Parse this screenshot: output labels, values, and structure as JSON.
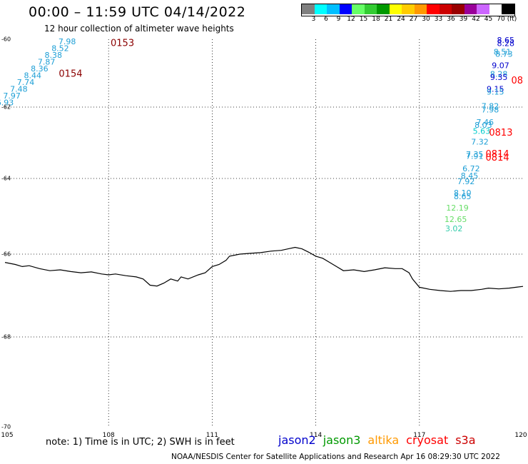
{
  "title": "00:00 – 11:59 UTC 04/14/2022",
  "subtitle": "12 hour collection of altimeter wave heights",
  "legend": {
    "unit": "(ft)",
    "colors": [
      "#808080",
      "#00ffff",
      "#00bfff",
      "#0000ff",
      "#66ff66",
      "#33cc33",
      "#009900",
      "#ffff00",
      "#ffcc00",
      "#ff9900",
      "#ff0000",
      "#cc0000",
      "#990000",
      "#990099",
      "#cc66ff",
      "#ffffff",
      "#000000"
    ],
    "labels": [
      "3",
      "6",
      "9",
      "12",
      "15",
      "18",
      "21",
      "24",
      "27",
      "30",
      "33",
      "36",
      "39",
      "42",
      "45",
      "70"
    ]
  },
  "axes": {
    "lon_ticks": [
      "105",
      "108",
      "111",
      "114",
      "117",
      "120"
    ],
    "lat_ticks": [
      "-60",
      "-62",
      "-64",
      "-66",
      "-68",
      "-70"
    ]
  },
  "note": "note: 1) Time is in UTC; 2) SWH is in feet",
  "satellites": [
    {
      "name": "jason2",
      "color": "#0000cc"
    },
    {
      "name": "jason3",
      "color": "#009900"
    },
    {
      "name": "altika",
      "color": "#ff9900"
    },
    {
      "name": "cryosat",
      "color": "#ff0000"
    },
    {
      "name": "s3a",
      "color": "#cc0000"
    }
  ],
  "credit": "NOAA/NESDIS Center for Satellite Applications and Research   Apr 16 08:29:30 UTC 2022",
  "time_labels": [
    {
      "text": "0153",
      "lon": 108.4,
      "lat": -60.2,
      "color": "#8b0000"
    },
    {
      "text": "0154",
      "lon": 106.9,
      "lat": -61.1,
      "color": "#8b0000"
    },
    {
      "text": "08",
      "lon": 120.0,
      "lat": -61.3,
      "color": "#ff0000"
    },
    {
      "text": "0813",
      "lon": 119.7,
      "lat": -62.8,
      "color": "#ff0000"
    },
    {
      "text": "0814",
      "lon": 119.6,
      "lat": -63.4,
      "color": "#ff0000"
    },
    {
      "text": "0814",
      "lon": 119.6,
      "lat": -63.5,
      "color": "#ff0000"
    }
  ],
  "wave_points": [
    {
      "value": "7.98",
      "lon": 106.8,
      "lat": -60.15,
      "color": "#1e9fd6"
    },
    {
      "value": "8.52",
      "lon": 106.6,
      "lat": -60.35,
      "color": "#1e9fd6"
    },
    {
      "value": "8.38",
      "lon": 106.4,
      "lat": -60.55,
      "color": "#1e9fd6"
    },
    {
      "value": "7.87",
      "lon": 106.2,
      "lat": -60.75,
      "color": "#1e9fd6"
    },
    {
      "value": "8.36",
      "lon": 106.0,
      "lat": -60.95,
      "color": "#1e9fd6"
    },
    {
      "value": "8.44",
      "lon": 105.8,
      "lat": -61.15,
      "color": "#1e9fd6"
    },
    {
      "value": "7.74",
      "lon": 105.6,
      "lat": -61.35,
      "color": "#1e9fd6"
    },
    {
      "value": "7.48",
      "lon": 105.4,
      "lat": -61.55,
      "color": "#1e9fd6"
    },
    {
      "value": "7.97",
      "lon": 105.2,
      "lat": -61.75,
      "color": "#1e9fd6"
    },
    {
      "value": "6.93",
      "lon": 105.0,
      "lat": -61.95,
      "color": "#1e9fd6"
    },
    {
      "value": "8.65",
      "lon": 119.5,
      "lat": -60.1,
      "color": "#0000cc"
    },
    {
      "value": "8.28",
      "lon": 119.5,
      "lat": -60.2,
      "color": "#0000cc"
    },
    {
      "value": "8.51",
      "lon": 119.4,
      "lat": -60.45,
      "color": "#1e9fd6"
    },
    {
      "value": "8.73",
      "lon": 119.45,
      "lat": -60.52,
      "color": "#1e9fd6"
    },
    {
      "value": "9.07",
      "lon": 119.35,
      "lat": -60.85,
      "color": "#0000cc"
    },
    {
      "value": "8.28",
      "lon": 119.3,
      "lat": -61.1,
      "color": "#1e9fd6"
    },
    {
      "value": "9.35",
      "lon": 119.3,
      "lat": -61.2,
      "color": "#0000cc"
    },
    {
      "value": "9.15",
      "lon": 119.2,
      "lat": -61.55,
      "color": "#0000cc"
    },
    {
      "value": "9.15",
      "lon": 119.2,
      "lat": -61.63,
      "color": "#1e9fd6"
    },
    {
      "value": "7.82",
      "lon": 119.05,
      "lat": -62.05,
      "color": "#1e9fd6"
    },
    {
      "value": "7.98",
      "lon": 119.05,
      "lat": -62.15,
      "color": "#1e9fd6"
    },
    {
      "value": "7.46",
      "lon": 118.9,
      "lat": -62.5,
      "color": "#1e9fd6"
    },
    {
      "value": "8.03",
      "lon": 118.85,
      "lat": -62.58,
      "color": "#1e9fd6"
    },
    {
      "value": "5.63",
      "lon": 118.8,
      "lat": -62.75,
      "color": "#00cccc"
    },
    {
      "value": "7.32",
      "lon": 118.75,
      "lat": -63.05,
      "color": "#1e9fd6"
    },
    {
      "value": "7.35",
      "lon": 118.6,
      "lat": -63.4,
      "color": "#1e9fd6"
    },
    {
      "value": "7.91",
      "lon": 118.6,
      "lat": -63.45,
      "color": "#1e9fd6"
    },
    {
      "value": "6.72",
      "lon": 118.5,
      "lat": -63.8,
      "color": "#1e9fd6"
    },
    {
      "value": "8.45",
      "lon": 118.45,
      "lat": -64.0,
      "color": "#1e9fd6"
    },
    {
      "value": "7.92",
      "lon": 118.35,
      "lat": -64.15,
      "color": "#1e9fd6"
    },
    {
      "value": "8.10",
      "lon": 118.25,
      "lat": -64.45,
      "color": "#1e9fd6"
    },
    {
      "value": "8.65",
      "lon": 118.25,
      "lat": -64.55,
      "color": "#1e9fd6"
    },
    {
      "value": "12.19",
      "lon": 118.1,
      "lat": -64.85,
      "color": "#66dd66"
    },
    {
      "value": "12.65",
      "lon": 118.05,
      "lat": -65.15,
      "color": "#66dd66"
    },
    {
      "value": "3.02",
      "lon": 118.0,
      "lat": -65.4,
      "color": "#33ccaa"
    }
  ],
  "coastline": [
    [
      105.0,
      -66.2
    ],
    [
      105.3,
      -66.25
    ],
    [
      105.5,
      -66.3
    ],
    [
      105.7,
      -66.28
    ],
    [
      106.0,
      -66.35
    ],
    [
      106.3,
      -66.4
    ],
    [
      106.6,
      -66.38
    ],
    [
      106.9,
      -66.42
    ],
    [
      107.2,
      -66.45
    ],
    [
      107.5,
      -66.43
    ],
    [
      107.8,
      -66.48
    ],
    [
      108.0,
      -66.5
    ],
    [
      108.2,
      -66.48
    ],
    [
      108.5,
      -66.52
    ],
    [
      108.8,
      -66.55
    ],
    [
      109.0,
      -66.6
    ],
    [
      109.2,
      -66.75
    ],
    [
      109.4,
      -66.77
    ],
    [
      109.6,
      -66.7
    ],
    [
      109.8,
      -66.6
    ],
    [
      110.0,
      -66.65
    ],
    [
      110.1,
      -66.55
    ],
    [
      110.3,
      -66.6
    ],
    [
      110.6,
      -66.5
    ],
    [
      110.8,
      -66.45
    ],
    [
      111.0,
      -66.3
    ],
    [
      111.2,
      -66.25
    ],
    [
      111.4,
      -66.15
    ],
    [
      111.5,
      -66.05
    ],
    [
      111.8,
      -66.0
    ],
    [
      112.1,
      -65.98
    ],
    [
      112.4,
      -65.96
    ],
    [
      112.7,
      -65.92
    ],
    [
      113.0,
      -65.9
    ],
    [
      113.2,
      -65.86
    ],
    [
      113.4,
      -65.82
    ],
    [
      113.6,
      -65.86
    ],
    [
      113.8,
      -65.95
    ],
    [
      114.0,
      -66.05
    ],
    [
      114.2,
      -66.1
    ],
    [
      114.4,
      -66.2
    ],
    [
      114.6,
      -66.3
    ],
    [
      114.8,
      -66.4
    ],
    [
      115.1,
      -66.38
    ],
    [
      115.4,
      -66.42
    ],
    [
      115.7,
      -66.38
    ],
    [
      116.0,
      -66.33
    ],
    [
      116.3,
      -66.35
    ],
    [
      116.5,
      -66.35
    ],
    [
      116.7,
      -66.45
    ],
    [
      116.8,
      -66.6
    ],
    [
      117.0,
      -66.8
    ],
    [
      117.3,
      -66.85
    ],
    [
      117.6,
      -66.88
    ],
    [
      117.9,
      -66.9
    ],
    [
      118.2,
      -66.88
    ],
    [
      118.5,
      -66.88
    ],
    [
      118.8,
      -66.85
    ],
    [
      119.0,
      -66.82
    ],
    [
      119.3,
      -66.84
    ],
    [
      119.6,
      -66.82
    ],
    [
      119.8,
      -66.8
    ],
    [
      120.0,
      -66.78
    ]
  ]
}
